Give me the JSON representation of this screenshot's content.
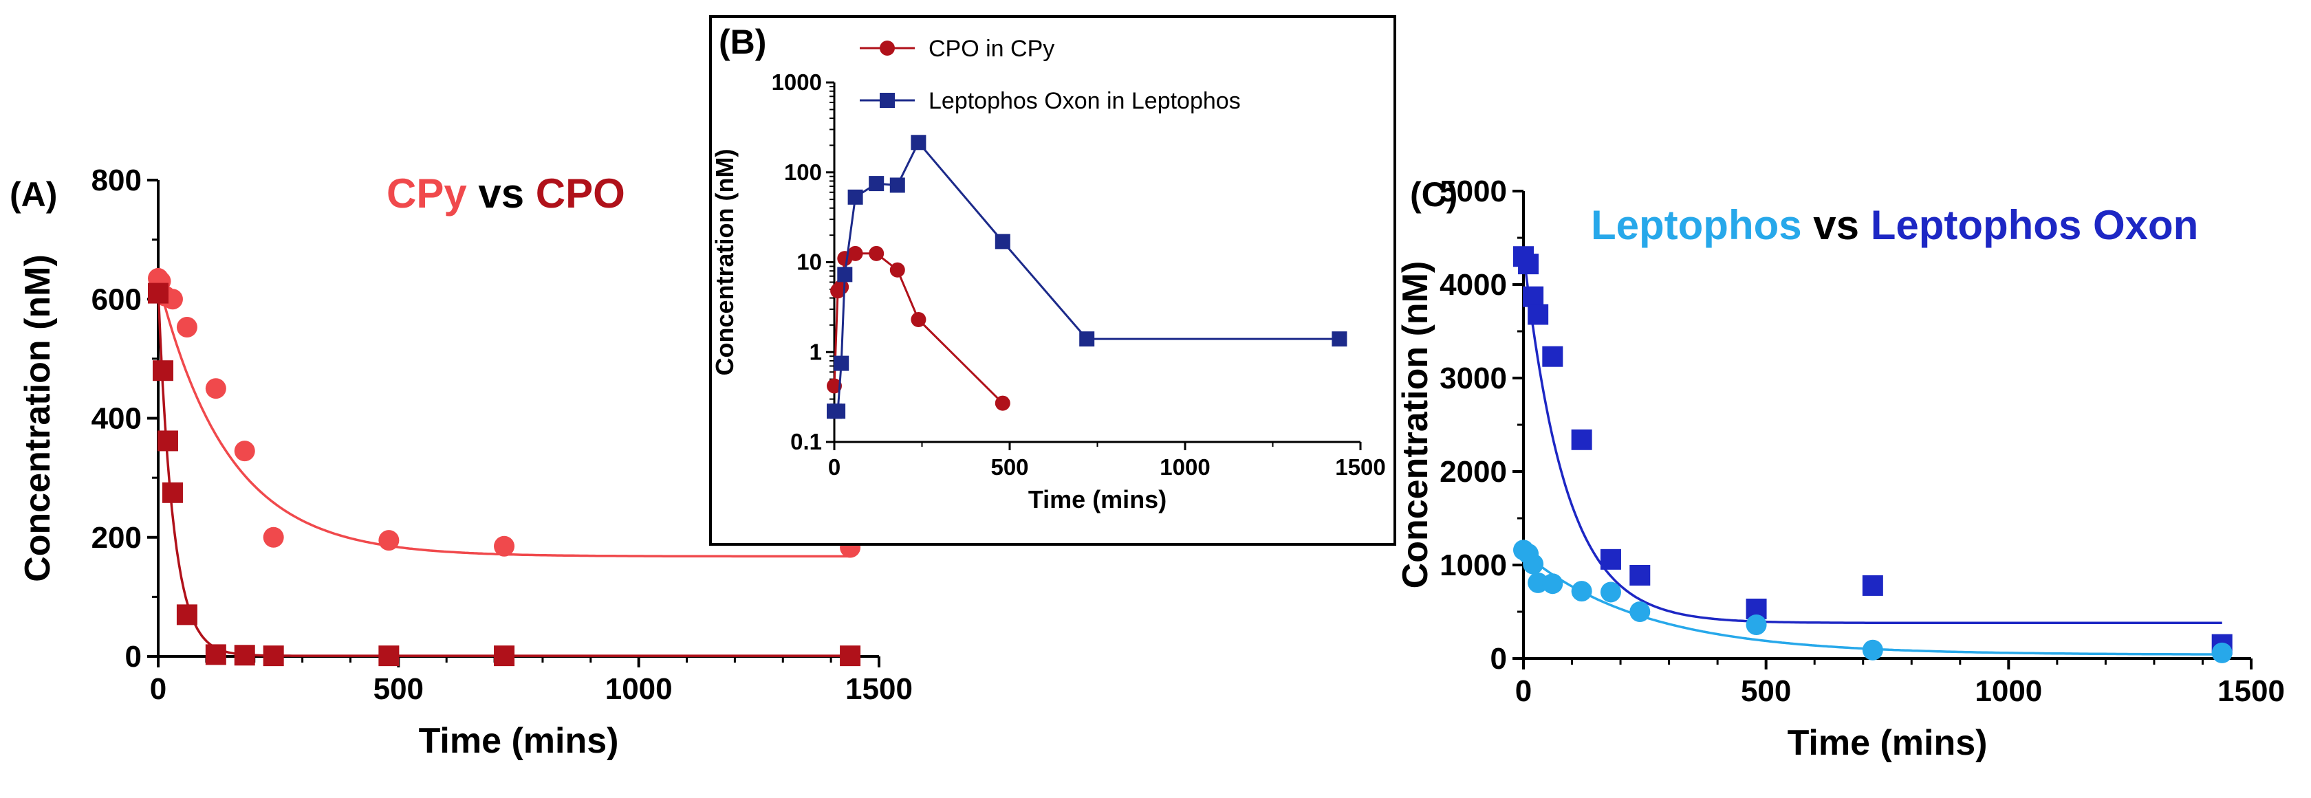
{
  "chart_data": [
    {
      "panel": "(A)",
      "type": "scatter",
      "title_parts": [
        {
          "text": "CPy",
          "color": "#f0494c"
        },
        {
          "text": " vs ",
          "color": "#000000"
        },
        {
          "text": "CPO",
          "color": "#b0111a"
        }
      ],
      "xlabel": "Time (mins)",
      "ylabel": "Concentration (nM)",
      "xlim": [
        0,
        1500
      ],
      "ylim": [
        0,
        800
      ],
      "xticks": [
        0,
        500,
        1000,
        1500
      ],
      "yticks": [
        0,
        200,
        400,
        600,
        800
      ],
      "grid": false,
      "series": [
        {
          "name": "CPy",
          "marker": "circle",
          "color": "#f0494c",
          "x": [
            0,
            5,
            15,
            30,
            60,
            120,
            180,
            240,
            480,
            720,
            1440
          ],
          "y": [
            635,
            630,
            605,
            600,
            553,
            450,
            345,
            200,
            195,
            185,
            183
          ],
          "fit": {
            "model": "exp_decay",
            "y0": 630,
            "plateau": 168,
            "k": 0.0068
          }
        },
        {
          "name": "CPO",
          "marker": "square",
          "color": "#b0111a",
          "x": [
            0,
            10,
            20,
            30,
            60,
            120,
            180,
            240,
            480,
            720,
            1440
          ],
          "y": [
            610,
            480,
            362,
            275,
            70,
            3,
            2,
            1,
            1,
            1,
            1
          ],
          "fit": {
            "model": "exp_decay",
            "y0": 615,
            "plateau": 1,
            "k": 0.032
          }
        }
      ]
    },
    {
      "panel": "(B)",
      "type": "line",
      "xlabel": "Time (mins)",
      "ylabel": "Concentration (nM)",
      "yscale": "log",
      "xlim": [
        0,
        1500
      ],
      "ylim": [
        0.1,
        1000
      ],
      "xticks": [
        0,
        500,
        1000,
        1500
      ],
      "yticks": [
        0.1,
        1,
        10,
        100,
        1000
      ],
      "ytick_labels": [
        "0.1",
        "1",
        "10",
        "100",
        "1000"
      ],
      "legend_position": "top",
      "series": [
        {
          "name": "CPO in CPy",
          "marker": "circle",
          "color": "#b0111a",
          "x": [
            0,
            10,
            20,
            30,
            60,
            120,
            180,
            240,
            480
          ],
          "y": [
            0.42,
            4.8,
            5.3,
            11,
            12.5,
            12.5,
            8.2,
            2.3,
            0.27
          ]
        },
        {
          "name": "Leptophos Oxon in Leptophos",
          "marker": "square",
          "color": "#1c2a8a",
          "x": [
            0,
            10,
            20,
            30,
            60,
            120,
            180,
            240,
            480,
            720,
            1440
          ],
          "y": [
            0.22,
            0.22,
            0.75,
            7.3,
            53,
            75,
            72,
            215,
            17,
            1.4,
            1.4
          ]
        }
      ]
    },
    {
      "panel": "(C)",
      "type": "scatter",
      "title_parts": [
        {
          "text": "Leptophos",
          "color": "#27a8ea"
        },
        {
          "text": " vs ",
          "color": "#000000"
        },
        {
          "text": "Leptophos Oxon",
          "color": "#1d27c4"
        }
      ],
      "xlabel": "Time (mins)",
      "ylabel": "Concentration (nM)",
      "xlim": [
        0,
        1500
      ],
      "ylim": [
        0,
        5000
      ],
      "xticks": [
        0,
        500,
        1000,
        1500
      ],
      "yticks": [
        0,
        1000,
        2000,
        3000,
        4000,
        5000
      ],
      "grid": false,
      "series": [
        {
          "name": "Leptophos Oxon",
          "marker": "square",
          "color": "#1d27c4",
          "x": [
            0,
            10,
            20,
            30,
            60,
            120,
            180,
            240,
            480,
            720,
            1440
          ],
          "y": [
            4300,
            4220,
            3870,
            3680,
            3230,
            2340,
            1060,
            890,
            530,
            780,
            150
          ],
          "fit": {
            "model": "exp_decay",
            "y0": 4350,
            "plateau": 380,
            "k": 0.0115
          }
        },
        {
          "name": "Leptophos",
          "marker": "circle",
          "color": "#27a8ea",
          "x": [
            0,
            10,
            20,
            30,
            60,
            120,
            180,
            240,
            480,
            720,
            1440
          ],
          "y": [
            1160,
            1120,
            1010,
            810,
            800,
            720,
            710,
            500,
            360,
            90,
            60
          ],
          "fit": {
            "model": "exp_decay",
            "y0": 1130,
            "plateau": 40,
            "k": 0.004
          }
        }
      ]
    }
  ]
}
